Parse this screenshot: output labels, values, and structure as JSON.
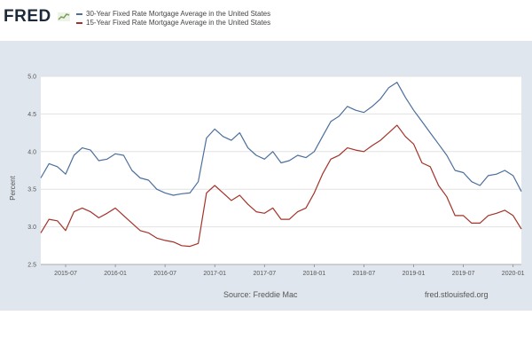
{
  "header": {
    "logo_text": "FRED",
    "logo_icon": "line-chart-icon"
  },
  "footer": {
    "source": "Source: Freddie Mac",
    "site": "fred.stlouisfed.org"
  },
  "colors": {
    "frame": "#dfe6ee",
    "series_30yr": "#4b6f9e",
    "series_15yr": "#a3332a",
    "logo_mark": "#7aa05a"
  },
  "chart_data": {
    "type": "line",
    "title": "",
    "xlabel": "",
    "ylabel": "Percent",
    "x_ticks": [
      "2015-07",
      "2016-01",
      "2016-07",
      "2017-01",
      "2017-07",
      "2018-01",
      "2018-07",
      "2019-01",
      "2019-07",
      "2020-01"
    ],
    "y_ticks": [
      "2.5",
      "3.0",
      "3.5",
      "4.0",
      "4.5",
      "5.0"
    ],
    "ylim": [
      2.5,
      5.0
    ],
    "xlim": [
      "2015-04",
      "2020-02"
    ],
    "grid": "horizontal",
    "legend_position": "top-left",
    "x": [
      "2015-04",
      "2015-05",
      "2015-06",
      "2015-07",
      "2015-08",
      "2015-09",
      "2015-10",
      "2015-11",
      "2015-12",
      "2016-01",
      "2016-02",
      "2016-03",
      "2016-04",
      "2016-05",
      "2016-06",
      "2016-07",
      "2016-08",
      "2016-09",
      "2016-10",
      "2016-11",
      "2016-12",
      "2017-01",
      "2017-02",
      "2017-03",
      "2017-04",
      "2017-05",
      "2017-06",
      "2017-07",
      "2017-08",
      "2017-09",
      "2017-10",
      "2017-11",
      "2017-12",
      "2018-01",
      "2018-02",
      "2018-03",
      "2018-04",
      "2018-05",
      "2018-06",
      "2018-07",
      "2018-08",
      "2018-09",
      "2018-10",
      "2018-11",
      "2018-12",
      "2019-01",
      "2019-02",
      "2019-03",
      "2019-04",
      "2019-05",
      "2019-06",
      "2019-07",
      "2019-08",
      "2019-09",
      "2019-10",
      "2019-11",
      "2019-12",
      "2020-01",
      "2020-02"
    ],
    "series": [
      {
        "name": "30-Year Fixed Rate Mortgage Average in the United States",
        "values": [
          3.65,
          3.84,
          3.8,
          3.7,
          3.95,
          4.05,
          4.02,
          3.88,
          3.9,
          3.97,
          3.95,
          3.75,
          3.65,
          3.62,
          3.5,
          3.45,
          3.42,
          3.44,
          3.45,
          3.6,
          4.18,
          4.3,
          4.2,
          4.15,
          4.25,
          4.05,
          3.95,
          3.9,
          4.0,
          3.85,
          3.88,
          3.95,
          3.92,
          4.0,
          4.2,
          4.4,
          4.47,
          4.6,
          4.55,
          4.52,
          4.6,
          4.7,
          4.85,
          4.92,
          4.72,
          4.55,
          4.4,
          4.25,
          4.1,
          3.95,
          3.75,
          3.72,
          3.6,
          3.55,
          3.68,
          3.7,
          3.75,
          3.68,
          3.47
        ]
      },
      {
        "name": "15-Year Fixed Rate Mortgage Average in the United States",
        "values": [
          2.92,
          3.1,
          3.08,
          2.95,
          3.2,
          3.25,
          3.2,
          3.12,
          3.18,
          3.25,
          3.15,
          3.05,
          2.95,
          2.92,
          2.85,
          2.82,
          2.8,
          2.75,
          2.74,
          2.78,
          3.45,
          3.55,
          3.45,
          3.35,
          3.42,
          3.3,
          3.2,
          3.18,
          3.25,
          3.1,
          3.1,
          3.2,
          3.25,
          3.45,
          3.7,
          3.9,
          3.95,
          4.05,
          4.02,
          4.0,
          4.08,
          4.15,
          4.25,
          4.35,
          4.2,
          4.1,
          3.85,
          3.8,
          3.55,
          3.4,
          3.15,
          3.15,
          3.05,
          3.05,
          3.15,
          3.18,
          3.22,
          3.15,
          2.97
        ]
      }
    ]
  }
}
